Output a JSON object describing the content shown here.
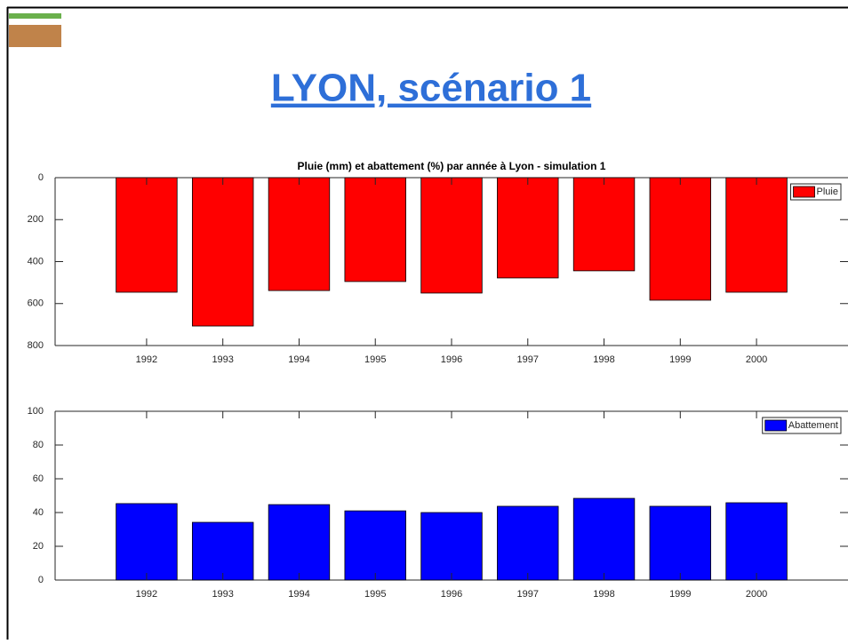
{
  "title": "LYON, scénario 1",
  "chart_data": [
    {
      "type": "bar",
      "title": "Pluie (mm) et abattement (%) par année à Lyon - simulation 1",
      "categories": [
        "1992",
        "1993",
        "1994",
        "1995",
        "1996",
        "1997",
        "1998",
        "1999",
        "2000"
      ],
      "series": [
        {
          "name": "Pluie",
          "color": "#ff0000",
          "values": [
            546,
            707,
            538,
            495,
            550,
            478,
            444,
            584,
            546
          ]
        }
      ],
      "ylim": [
        0,
        800
      ],
      "yticks": [
        0,
        200,
        400,
        600,
        800
      ],
      "y_reversed": true,
      "legend": "upper right"
    },
    {
      "type": "bar",
      "categories": [
        "1992",
        "1993",
        "1994",
        "1995",
        "1996",
        "1997",
        "1998",
        "1999",
        "2000"
      ],
      "series": [
        {
          "name": "Abattement",
          "color": "#0000ff",
          "values": [
            45.3,
            34.2,
            44.7,
            41,
            40,
            43.7,
            48.4,
            43.7,
            45.8
          ]
        }
      ],
      "ylim": [
        0,
        100
      ],
      "yticks": [
        0,
        20,
        40,
        60,
        80,
        100
      ],
      "legend": "upper right"
    }
  ]
}
